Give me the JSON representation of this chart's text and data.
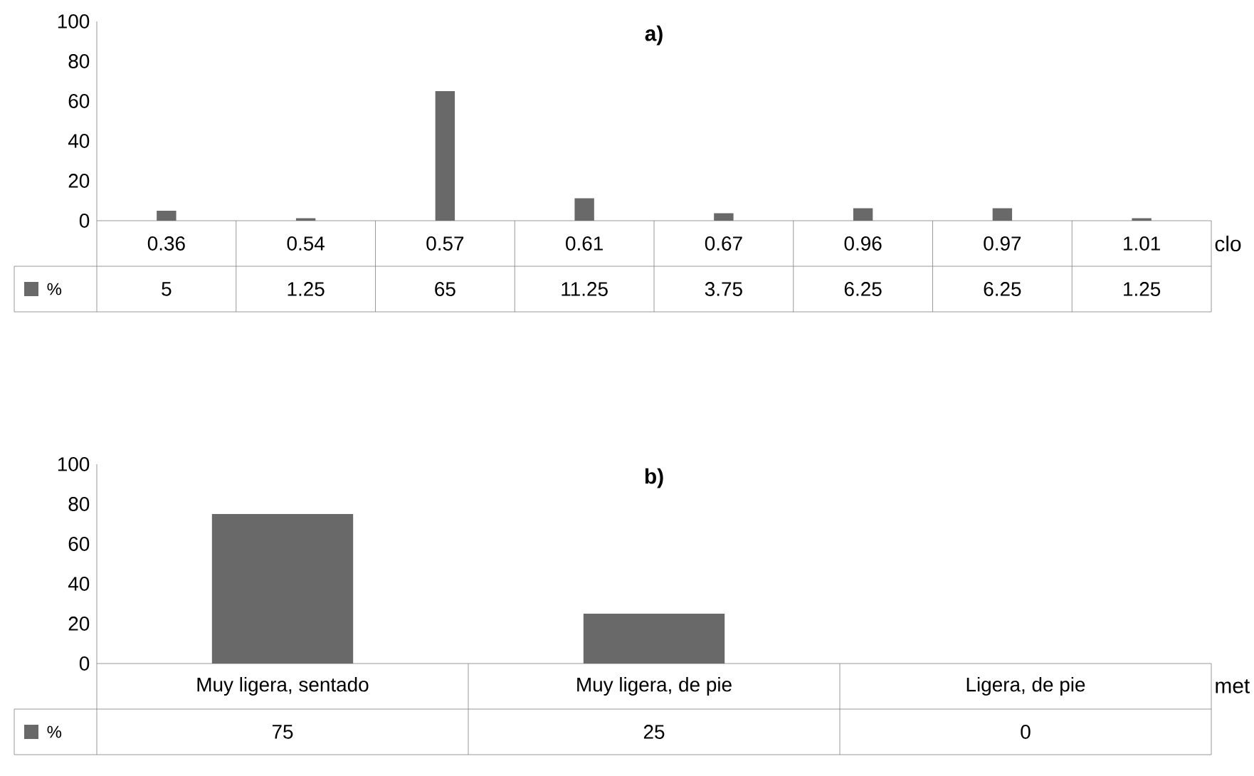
{
  "chart_data": [
    {
      "type": "bar",
      "title": "a)",
      "xlabel": "clo",
      "categories": [
        "0.36",
        "0.54",
        "0.57",
        "0.61",
        "0.67",
        "0.96",
        "0.97",
        "1.01"
      ],
      "series": [
        {
          "name": "%",
          "color": "#696969",
          "values": [
            5,
            1.25,
            65,
            11.25,
            3.75,
            6.25,
            6.25,
            1.25
          ]
        }
      ],
      "ylim": [
        0,
        100
      ],
      "yticks": [
        0,
        20,
        40,
        60,
        80,
        100
      ],
      "data_labels": true
    },
    {
      "type": "bar",
      "title": "b)",
      "xlabel": "met",
      "categories": [
        "Muy ligera, sentado",
        "Muy ligera, de pie",
        "Ligera, de pie"
      ],
      "series": [
        {
          "name": "%",
          "color": "#696969",
          "values": [
            75,
            25,
            0
          ]
        }
      ],
      "ylim": [
        0,
        100
      ],
      "yticks": [
        0,
        20,
        40,
        60,
        80,
        100
      ],
      "data_labels": true
    }
  ]
}
